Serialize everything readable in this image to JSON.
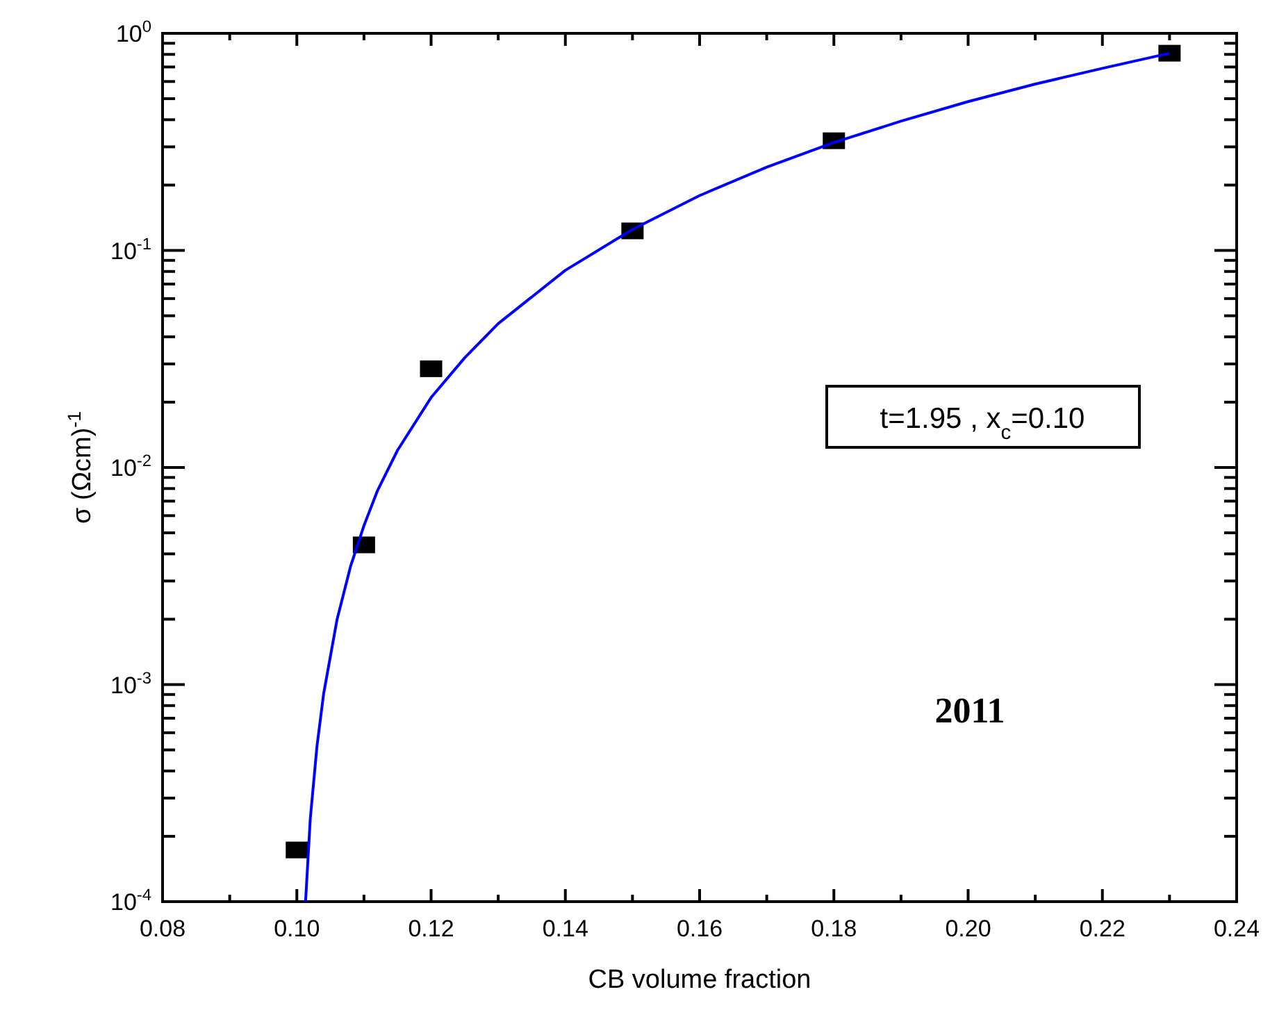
{
  "chart_data": {
    "type": "scatter",
    "xlabel": "CB volume fraction",
    "ylabel": "σ (Ωcm)$^{-1}$",
    "log": "y",
    "marker": "square",
    "grid": false,
    "xlim": [
      0.08,
      0.24
    ],
    "xticks": [
      {
        "value": 0.08,
        "label": "0.08"
      },
      {
        "value": 0.09,
        "label": null
      },
      {
        "value": 0.1,
        "label": "0.10"
      },
      {
        "value": 0.11,
        "label": null
      },
      {
        "value": 0.12,
        "label": "0.12"
      },
      {
        "value": 0.13,
        "label": null
      },
      {
        "value": 0.14,
        "label": "0.14"
      },
      {
        "value": 0.15,
        "label": null
      },
      {
        "value": 0.16,
        "label": "0.16"
      },
      {
        "value": 0.17,
        "label": null
      },
      {
        "value": 0.18,
        "label": "0.18"
      },
      {
        "value": 0.19,
        "label": null
      },
      {
        "value": 0.2,
        "label": "0.20"
      },
      {
        "value": 0.21,
        "label": null
      },
      {
        "value": 0.22,
        "label": "0.22"
      },
      {
        "value": 0.23,
        "label": null
      },
      {
        "value": 0.24,
        "label": "0.24"
      }
    ],
    "ylim": [
      0.0001,
      1
    ],
    "yticks": [
      {
        "value": 0.0001,
        "label": "10$^{-4}$"
      },
      {
        "value": 0.0002,
        "label": null
      },
      {
        "value": 0.0003,
        "label": null
      },
      {
        "value": 0.0004,
        "label": null
      },
      {
        "value": 0.0005,
        "label": null
      },
      {
        "value": 0.0006,
        "label": null
      },
      {
        "value": 0.0007,
        "label": null
      },
      {
        "value": 0.0008,
        "label": null
      },
      {
        "value": 0.0009,
        "label": null
      },
      {
        "value": 0.001,
        "label": "10$^{-3}$"
      },
      {
        "value": 0.002,
        "label": null
      },
      {
        "value": 0.003,
        "label": null
      },
      {
        "value": 0.004,
        "label": null
      },
      {
        "value": 0.005,
        "label": null
      },
      {
        "value": 0.006,
        "label": null
      },
      {
        "value": 0.007,
        "label": null
      },
      {
        "value": 0.008,
        "label": null
      },
      {
        "value": 0.009,
        "label": null
      },
      {
        "value": 0.01,
        "label": "10$^{-2}$"
      },
      {
        "value": 0.02,
        "label": null
      },
      {
        "value": 0.03,
        "label": null
      },
      {
        "value": 0.04,
        "label": null
      },
      {
        "value": 0.05,
        "label": null
      },
      {
        "value": 0.06,
        "label": null
      },
      {
        "value": 0.07,
        "label": null
      },
      {
        "value": 0.08,
        "label": null
      },
      {
        "value": 0.09,
        "label": null
      },
      {
        "value": 0.1,
        "label": "10$^{-1}$"
      },
      {
        "value": 0.2,
        "label": null
      },
      {
        "value": 0.3,
        "label": null
      },
      {
        "value": 0.4,
        "label": null
      },
      {
        "value": 0.5,
        "label": null
      },
      {
        "value": 0.6,
        "label": null
      },
      {
        "value": 0.7,
        "label": null
      },
      {
        "value": 0.8,
        "label": null
      },
      {
        "value": 0.9,
        "label": null
      },
      {
        "value": 1,
        "label": "10$^{0}$"
      }
    ],
    "series": [
      {
        "color": "#000000",
        "x": [
          0.1,
          0.11,
          0.12,
          0.15,
          0.18,
          0.23
        ],
        "values": [
          0.000173,
          0.0044,
          0.0285,
          0.123,
          0.32,
          0.81
        ]
      },
      {
        "type": "line",
        "color": "#0000ff",
        "marker": "none",
        "x": [
          0.1013,
          0.102,
          0.103,
          0.104,
          0.106,
          0.108,
          0.11,
          0.112,
          0.115,
          0.12,
          0.125,
          0.13,
          0.14,
          0.15,
          0.16,
          0.17,
          0.18,
          0.19,
          0.2,
          0.21,
          0.22,
          0.23
        ],
        "values": [
          0.0001,
          0.00024,
          0.00052,
          0.00091,
          0.002,
          0.0035,
          0.0054,
          0.0078,
          0.012,
          0.021,
          0.032,
          0.046,
          0.081,
          0.125,
          0.179,
          0.242,
          0.314,
          0.394,
          0.485,
          0.584,
          0.69,
          0.81
        ]
      }
    ],
    "annotations": [
      "t=1.95 , x$_{c}$=0.10",
      "2011"
    ]
  }
}
